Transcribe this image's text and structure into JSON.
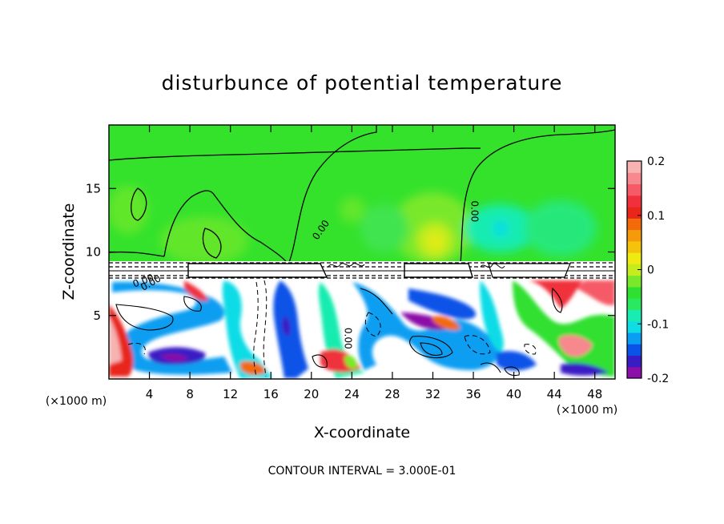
{
  "chart_data": {
    "type": "heatmap",
    "title": "disturbunce of potential temperature",
    "xlabel": "X-coordinate",
    "ylabel": "Z-coordinate",
    "x_unit_left": "(×1000 m)",
    "x_unit_right": "(×1000 m)",
    "footer": "CONTOUR INTERVAL = 3.000E-01",
    "xlim": [
      0,
      50
    ],
    "ylim": [
      0,
      20
    ],
    "x_ticks": [
      4,
      8,
      12,
      16,
      20,
      24,
      28,
      32,
      36,
      40,
      44,
      48
    ],
    "y_ticks": [
      5,
      10,
      15
    ],
    "contour_labels": [
      {
        "text": "0.00",
        "x": 3.5,
        "y": 7.5,
        "rotation": 20
      },
      {
        "text": "0.00",
        "x": 21.2,
        "y": 11.6,
        "rotation": 55
      },
      {
        "text": "0.00",
        "x": 35.8,
        "y": 13.2,
        "rotation": -90
      },
      {
        "text": "0.00",
        "x": 23.3,
        "y": 3.2,
        "rotation": -90
      },
      {
        "text": "0.00",
        "x": 4.3,
        "y": 7.35,
        "rotation": 30
      }
    ],
    "colorbar": {
      "min": -0.2,
      "max": 0.2,
      "ticks": [
        "0.2",
        "0.1",
        "0",
        "-0.1",
        "-0.2"
      ],
      "tick_values": [
        0.2,
        0.1,
        0,
        -0.1,
        -0.2
      ],
      "colors": [
        "#8b0fa8",
        "#3a1cc4",
        "#0a52e8",
        "#0a9ef2",
        "#10dce6",
        "#18ecb0",
        "#2ae860",
        "#30e030",
        "#7ae82a",
        "#c6ec1e",
        "#eeea12",
        "#f5c20c",
        "#f59a0a",
        "#f26a0a",
        "#e8261a",
        "#f0303c",
        "#f55a66",
        "#f7888e",
        "#f7b2b2"
      ]
    },
    "upper_field_description_values": {
      "background": 0.0,
      "warm_max": 0.1
    }
  }
}
